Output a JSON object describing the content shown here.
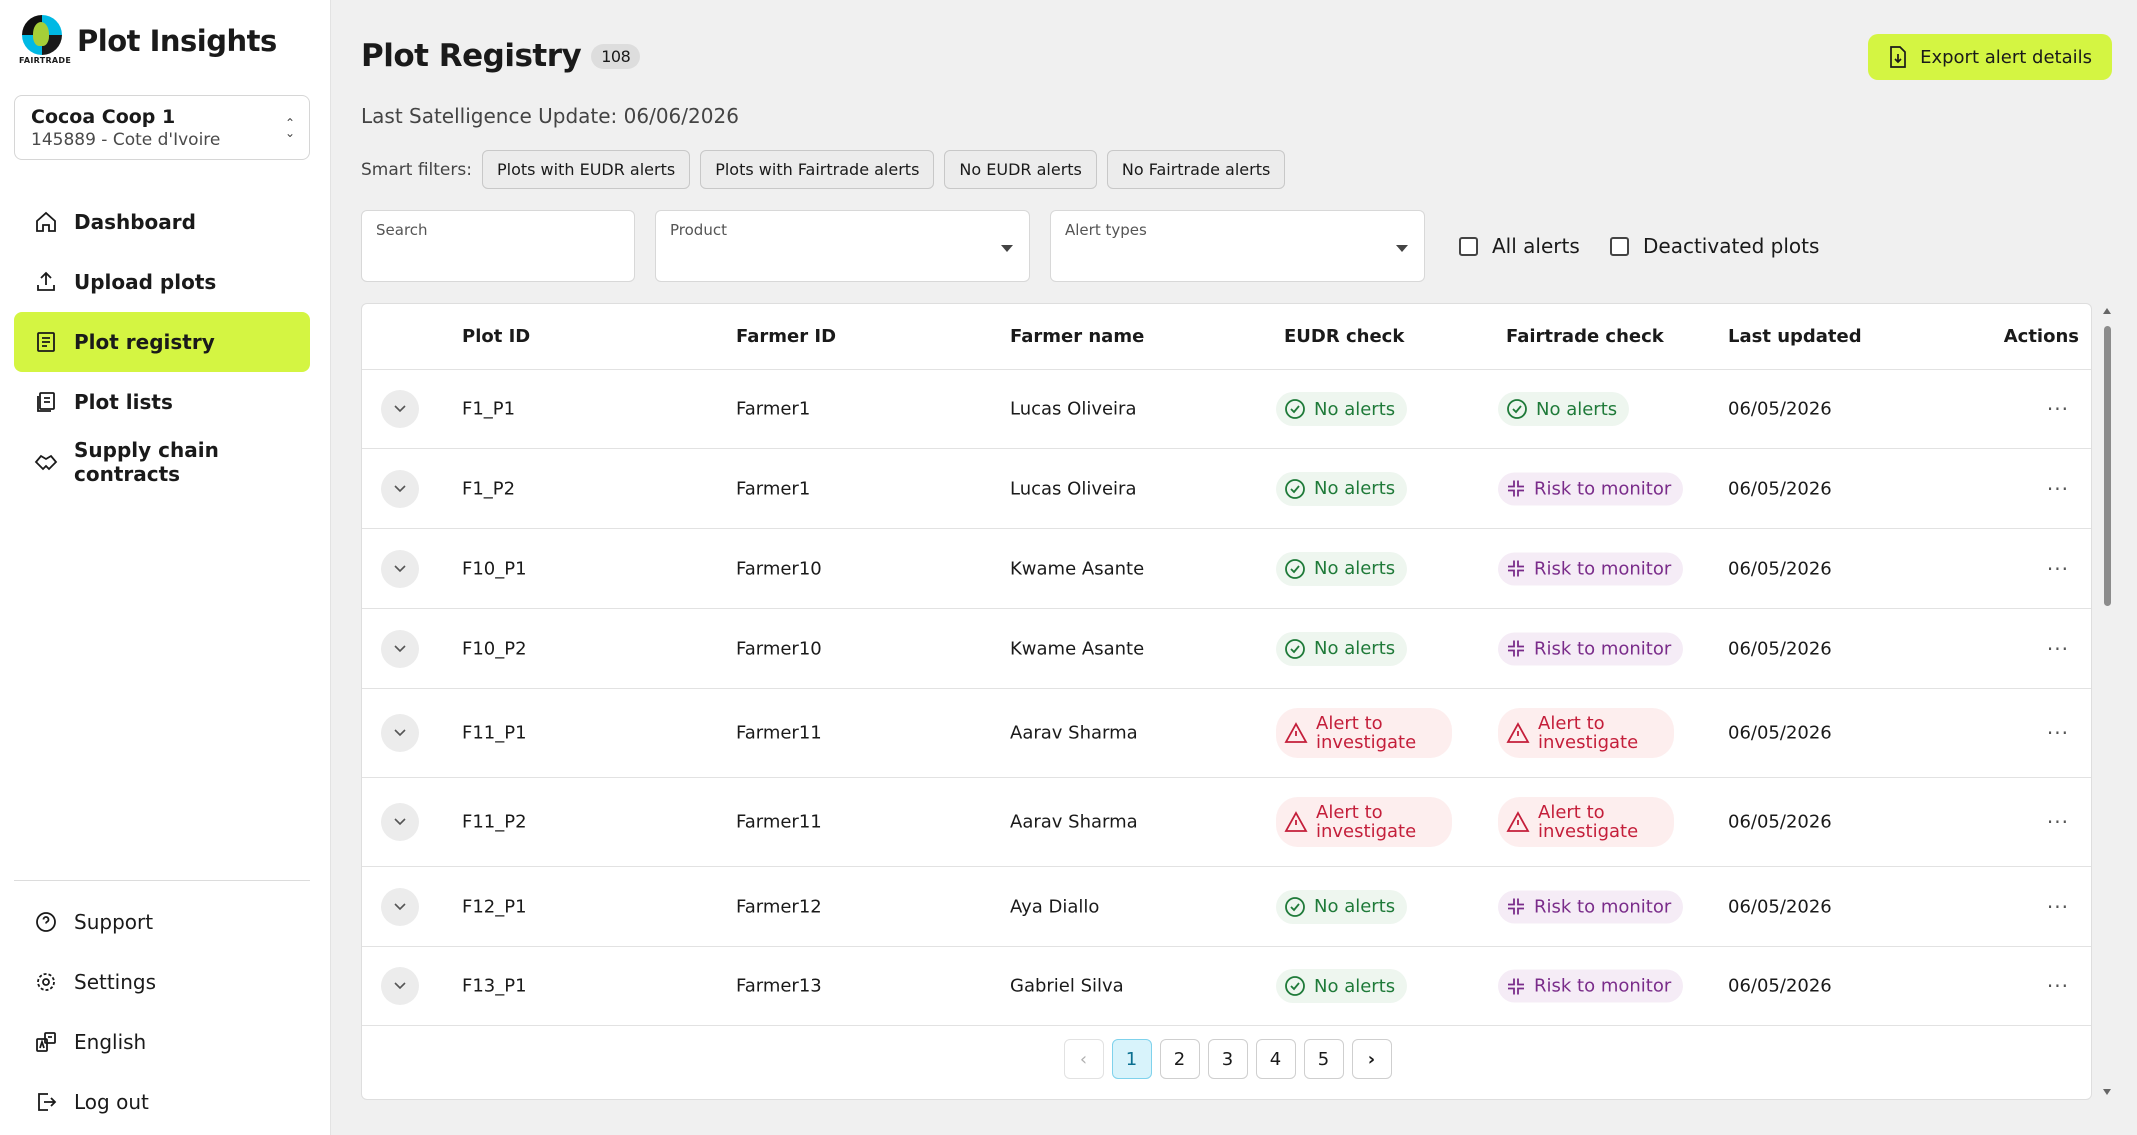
{
  "brand": {
    "title": "Plot Insights",
    "logo_text": "FAIRTRADE"
  },
  "coop": {
    "name": "Cocoa Coop 1",
    "sub": "145889 - Cote d'Ivoire"
  },
  "nav": {
    "dashboard": "Dashboard",
    "upload": "Upload plots",
    "registry": "Plot registry",
    "lists": "Plot lists",
    "contracts": "Supply chain contracts"
  },
  "bottom_nav": {
    "support": "Support",
    "settings": "Settings",
    "language": "English",
    "logout": "Log out"
  },
  "page": {
    "title": "Plot Registry",
    "count": "108",
    "last_update": "Last Satelligence Update: 06/06/2026",
    "export_label": "Export alert details"
  },
  "smart_filters": {
    "label": "Smart filters:",
    "chips": [
      "Plots with EUDR alerts",
      "Plots with Fairtrade alerts",
      "No EUDR alerts",
      "No Fairtrade alerts"
    ]
  },
  "filters": {
    "search": "Search",
    "product": "Product",
    "alert_types": "Alert types",
    "all_alerts": "All alerts",
    "deactivated": "Deactivated plots"
  },
  "table": {
    "headers": [
      "Plot ID",
      "Farmer ID",
      "Farmer name",
      "EUDR check",
      "Fairtrade check",
      "Last updated",
      "Actions"
    ],
    "rows": [
      {
        "plot": "F1_P1",
        "farmer_id": "Farmer1",
        "name": "Lucas Oliveira",
        "eudr": "No alerts",
        "fairtrade": "No alerts",
        "updated": "06/05/2026"
      },
      {
        "plot": "F1_P2",
        "farmer_id": "Farmer1",
        "name": "Lucas Oliveira",
        "eudr": "No alerts",
        "fairtrade": "Risk to monitor",
        "updated": "06/05/2026"
      },
      {
        "plot": "F10_P1",
        "farmer_id": "Farmer10",
        "name": "Kwame Asante",
        "eudr": "No alerts",
        "fairtrade": "Risk to monitor",
        "updated": "06/05/2026"
      },
      {
        "plot": "F10_P2",
        "farmer_id": "Farmer10",
        "name": "Kwame Asante",
        "eudr": "No alerts",
        "fairtrade": "Risk to monitor",
        "updated": "06/05/2026"
      },
      {
        "plot": "F11_P1",
        "farmer_id": "Farmer11",
        "name": "Aarav Sharma",
        "eudr": "Alert to investigate",
        "fairtrade": "Alert to investigate",
        "updated": "06/05/2026"
      },
      {
        "plot": "F11_P2",
        "farmer_id": "Farmer11",
        "name": "Aarav Sharma",
        "eudr": "Alert to investigate",
        "fairtrade": "Alert to investigate",
        "updated": "06/05/2026"
      },
      {
        "plot": "F12_P1",
        "farmer_id": "Farmer12",
        "name": "Aya Diallo",
        "eudr": "No alerts",
        "fairtrade": "Risk to monitor",
        "updated": "06/05/2026"
      },
      {
        "plot": "F13_P1",
        "farmer_id": "Farmer13",
        "name": "Gabriel Silva",
        "eudr": "No alerts",
        "fairtrade": "Risk to monitor",
        "updated": "06/05/2026"
      }
    ],
    "actions_glyph": "···"
  },
  "pagination": {
    "pages": [
      "1",
      "2",
      "3",
      "4",
      "5"
    ],
    "current": "1"
  },
  "colors": {
    "accent": "#d4f542",
    "ok": "#1f7a39",
    "risk": "#7a2c8a",
    "alert": "#c41e3a"
  }
}
